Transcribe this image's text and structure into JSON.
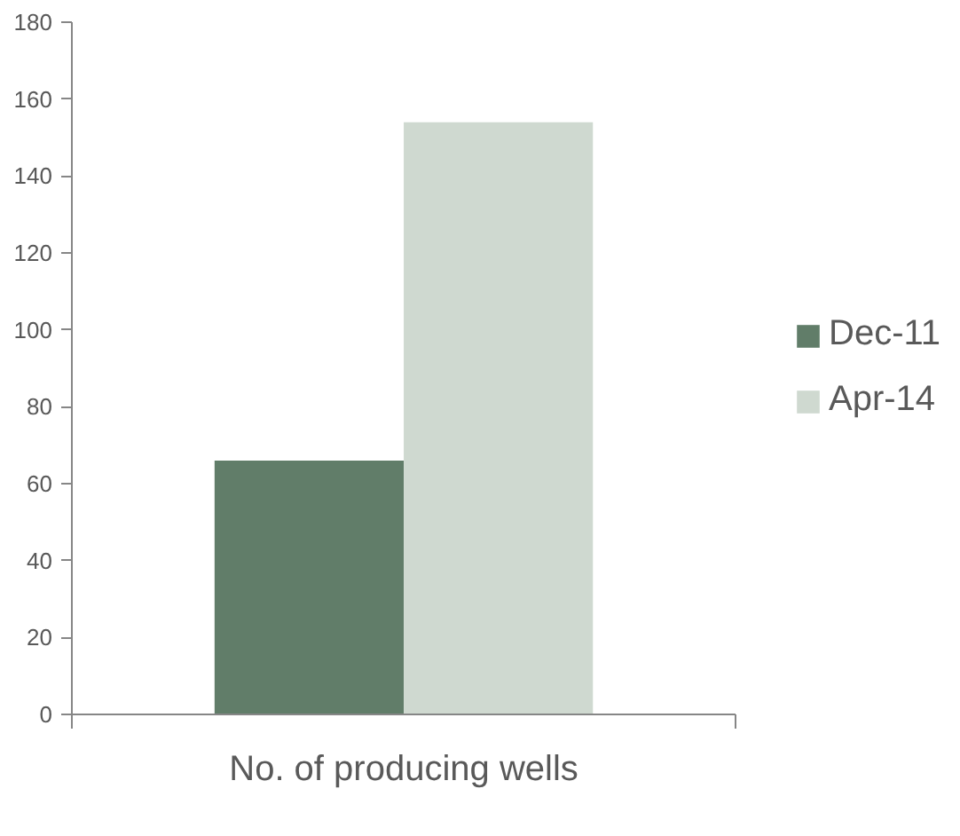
{
  "chart_data": {
    "type": "bar",
    "categories": [
      "No. of producing wells"
    ],
    "series": [
      {
        "name": "Dec-11",
        "color": "#617d69",
        "values": [
          66
        ]
      },
      {
        "name": "Apr-14",
        "color": "#cfd9d0",
        "values": [
          154
        ]
      }
    ],
    "ylim": [
      0,
      180
    ],
    "yticks": [
      0,
      20,
      40,
      60,
      80,
      100,
      120,
      140,
      160,
      180
    ],
    "legend": "right"
  }
}
